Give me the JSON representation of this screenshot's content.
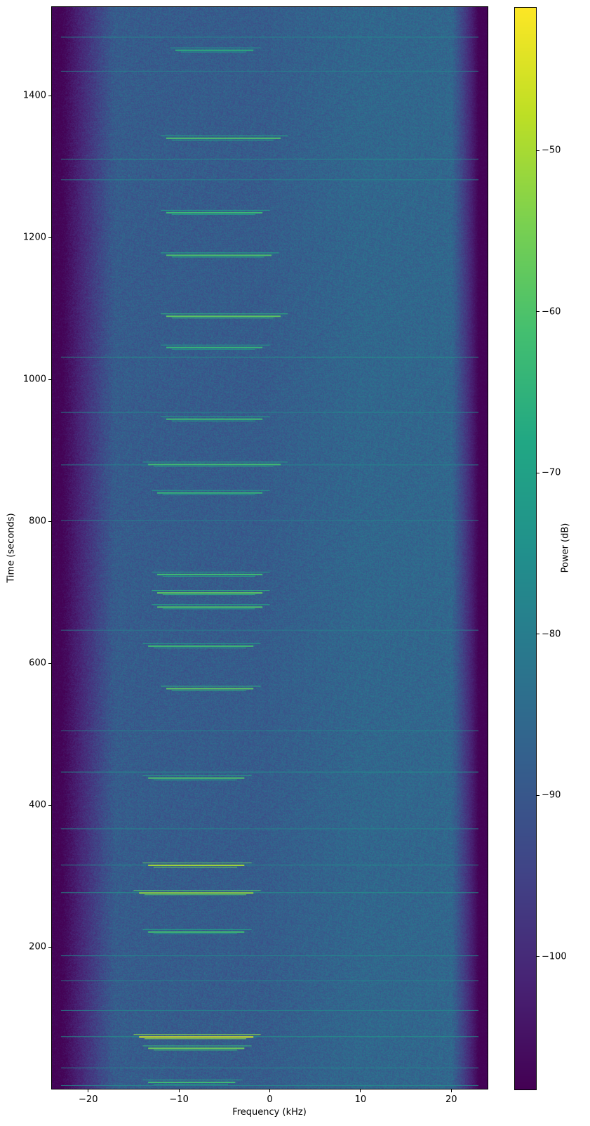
{
  "chart_data": {
    "type": "heatmap",
    "subtype": "spectrogram",
    "title": "",
    "xlabel": "Frequency (kHz)",
    "ylabel": "Time (seconds)",
    "colorbar_label": "Power (dB)",
    "colormap": "viridis",
    "xlim": [
      -24,
      24
    ],
    "ylim": [
      0,
      1525
    ],
    "clim": [
      -108.2,
      -41.1
    ],
    "xticks": [
      -20,
      -10,
      0,
      10,
      20
    ],
    "xtick_labels": [
      "−20",
      "−10",
      "0",
      "10",
      "20"
    ],
    "yticks": [
      200,
      400,
      600,
      800,
      1000,
      1200,
      1400
    ],
    "ytick_labels": [
      "200",
      "400",
      "600",
      "800",
      "1000",
      "1200",
      "1400"
    ],
    "cticks": [
      -100,
      -90,
      -80,
      -70,
      -60,
      -50
    ],
    "ctick_labels": [
      "−100",
      "−90",
      "−80",
      "−70",
      "−60",
      "−50"
    ],
    "grid": false,
    "noise_floor_db": -88,
    "band_edge_khz": 22,
    "out_of_band_db": -108,
    "narrowband_bursts": [
      {
        "t": 1465,
        "f": [
          -11,
          -1
        ],
        "db": -66
      },
      {
        "t": 1341,
        "f": [
          -12,
          2
        ],
        "db": -60
      },
      {
        "t": 1236,
        "f": [
          -12,
          0
        ],
        "db": -63
      },
      {
        "t": 1176,
        "f": [
          -12,
          1
        ],
        "db": -60
      },
      {
        "t": 1090,
        "f": [
          -12,
          2
        ],
        "db": -58
      },
      {
        "t": 1046,
        "f": [
          -12,
          0
        ],
        "db": -64
      },
      {
        "t": 945,
        "f": [
          -12,
          0
        ],
        "db": -62
      },
      {
        "t": 881,
        "f": [
          -14,
          2
        ],
        "db": -62
      },
      {
        "t": 841,
        "f": [
          -13,
          0
        ],
        "db": -64
      },
      {
        "t": 726,
        "f": [
          -13,
          0
        ],
        "db": -62
      },
      {
        "t": 700,
        "f": [
          -13,
          0
        ],
        "db": -58
      },
      {
        "t": 680,
        "f": [
          -13,
          0
        ],
        "db": -60
      },
      {
        "t": 625,
        "f": [
          -14,
          -1
        ],
        "db": -62
      },
      {
        "t": 565,
        "f": [
          -12,
          -1
        ],
        "db": -58
      },
      {
        "t": 439,
        "f": [
          -14,
          -2
        ],
        "db": -60
      },
      {
        "t": 316,
        "f": [
          -14,
          -2
        ],
        "db": -50
      },
      {
        "t": 277,
        "f": [
          -15,
          -1
        ],
        "db": -52
      },
      {
        "t": 222,
        "f": [
          -14,
          -2
        ],
        "db": -62
      },
      {
        "t": 74,
        "f": [
          -15,
          -1
        ],
        "db": -45
      },
      {
        "t": 58,
        "f": [
          -14,
          -2
        ],
        "db": -56
      },
      {
        "t": 10,
        "f": [
          -14,
          -3
        ],
        "db": -62
      }
    ],
    "broadband_lines": [
      {
        "t": 1483,
        "db": -75
      },
      {
        "t": 1435,
        "db": -78
      },
      {
        "t": 1311,
        "db": -74
      },
      {
        "t": 1282,
        "db": -76
      },
      {
        "t": 1032,
        "db": -72
      },
      {
        "t": 954,
        "db": -76
      },
      {
        "t": 880,
        "db": -76
      },
      {
        "t": 802,
        "db": -78
      },
      {
        "t": 647,
        "db": -78
      },
      {
        "t": 505,
        "db": -76
      },
      {
        "t": 447,
        "db": -74
      },
      {
        "t": 367,
        "db": -76
      },
      {
        "t": 316,
        "db": -74
      },
      {
        "t": 277,
        "db": -72
      },
      {
        "t": 188,
        "db": -76
      },
      {
        "t": 153,
        "db": -76
      },
      {
        "t": 111,
        "db": -76
      },
      {
        "t": 74,
        "db": -72
      },
      {
        "t": 30,
        "db": -76
      },
      {
        "t": 5,
        "db": -74
      }
    ]
  }
}
